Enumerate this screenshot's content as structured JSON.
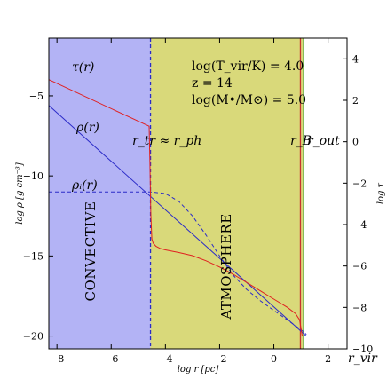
{
  "chart_data": {
    "type": "line",
    "xlabel": "log r [pc]",
    "ylabel": "log ρ [g cm⁻³]",
    "y2label": "log τ",
    "xlim": [
      -8.3,
      2.7
    ],
    "ylim": [
      -20.8,
      -1.4
    ],
    "y2lim": [
      -10,
      5
    ],
    "x_ticks": [
      -8,
      -6,
      -4,
      -2,
      0,
      2
    ],
    "x_tick_labels": [
      "−8",
      "−6",
      "−4",
      "−2",
      "0",
      "2"
    ],
    "y_ticks": [
      -20,
      -15,
      -10,
      -5
    ],
    "y2_ticks": [
      -10,
      -8,
      -6,
      -4,
      -2,
      0,
      2,
      4
    ],
    "y2_tick_labels": [
      "−10",
      "−8",
      "−6",
      "−4",
      "−2",
      "0",
      "2",
      "4"
    ],
    "regions": [
      {
        "label": "CONVECTIVE",
        "x0": -8.3,
        "x1": -4.55,
        "color": "#b3b3f5"
      },
      {
        "label": "ATMOSPHERE",
        "x0": -4.55,
        "x1": 1.1,
        "color": "#d9d97a"
      }
    ],
    "vlines": [
      {
        "x": -4.55,
        "color": "#2b2bc8",
        "style": "dashed"
      },
      {
        "x": 0.98,
        "color": "#c83232",
        "style": "solid"
      },
      {
        "x": 1.1,
        "color": "#3ca03c",
        "style": "solid"
      }
    ],
    "series": [
      {
        "axis": "left",
        "color": "#2b2bc8",
        "style": "solid",
        "x": [
          -8.3,
          1.2
        ],
        "y": [
          -5.6,
          -20.0
        ]
      },
      {
        "axis": "left",
        "color": "#2b2bc8",
        "style": "dashed",
        "x": [
          -8.3,
          -4.55,
          -4.0,
          -3.5,
          -3.0,
          -2.5,
          -2.0,
          -1.5,
          -1.0,
          -0.5,
          0.0,
          0.5,
          1.0,
          1.2
        ],
        "y": [
          -11.0,
          -11.0,
          -11.1,
          -11.6,
          -12.5,
          -13.7,
          -15.0,
          -16.2,
          -17.1,
          -17.8,
          -18.4,
          -19.0,
          -19.6,
          -19.9
        ]
      },
      {
        "axis": "right",
        "color": "#e02020",
        "style": "solid",
        "x": [
          -8.3,
          -4.6,
          -4.57,
          -4.54,
          -4.5,
          -4.45,
          -4.35,
          -4.2,
          -4.0,
          -3.5,
          -3.0,
          -2.5,
          -2.0,
          -1.5,
          -1.0,
          -0.5,
          0.0,
          0.5,
          0.8,
          0.95,
          1.0,
          1.05
        ],
        "y": [
          3.0,
          0.75,
          -1.0,
          -3.5,
          -4.7,
          -4.9,
          -5.05,
          -5.15,
          -5.22,
          -5.35,
          -5.5,
          -5.75,
          -6.05,
          -6.4,
          -6.8,
          -7.2,
          -7.6,
          -8.0,
          -8.3,
          -8.6,
          -9.0,
          -9.4
        ]
      }
    ],
    "annotations": {
      "tau": "τ(r)",
      "rho": "ρ(r)",
      "rho_i": "ρᵢ(r)",
      "params_1": "log(T_vir/K) = 4.0",
      "params_2": "z = 14",
      "params_3": "log(M•/M⊙) = 5.0",
      "r_tr": "r_tr ≈ r_ph",
      "r_b": "r_B",
      "r_out": "r_out",
      "r_vir": "r_vir"
    }
  }
}
